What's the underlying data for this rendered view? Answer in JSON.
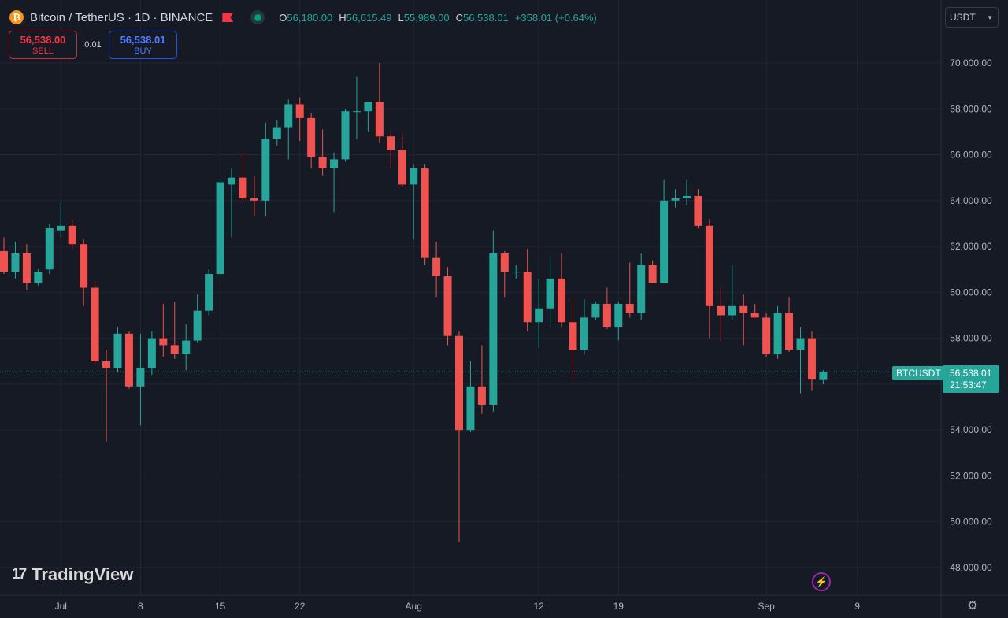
{
  "header": {
    "coin_glyph": "₿",
    "symbol_title": "Bitcoin / TetherUS · 1D · BINANCE",
    "ohlc": {
      "o_label": "O",
      "o_value": "56,180.00",
      "h_label": "H",
      "h_value": "56,615.49",
      "l_label": "L",
      "l_value": "55,989.00",
      "c_label": "C",
      "c_value": "56,538.01",
      "change": "+358.01 (+0.64%)"
    }
  },
  "trade": {
    "sell_price": "56,538.00",
    "sell_label": "SELL",
    "spread": "0.01",
    "buy_price": "56,538.01",
    "buy_label": "BUY"
  },
  "currency_select": {
    "value": "USDT"
  },
  "branding": {
    "logo_mark": "17",
    "logo_text": "TradingView"
  },
  "price_tag": {
    "symbol": "BTCUSDT",
    "price": "56,538.01",
    "countdown": "21:53:47"
  },
  "colors": {
    "up": "#26a69a",
    "down": "#ef5350",
    "background": "#161a25",
    "grid": "#232632",
    "axis_text": "#b2b5be"
  },
  "icons": {
    "bolt": "lightning-icon",
    "gear": "settings-gear-icon",
    "chevron": "chevron-down-icon",
    "flag": "flag-icon"
  },
  "chart_data": {
    "type": "candlestick",
    "x_labels": [
      {
        "label": "Jul",
        "date": "2024-07-01"
      },
      {
        "label": "8",
        "date": "2024-07-08"
      },
      {
        "label": "15",
        "date": "2024-07-15"
      },
      {
        "label": "22",
        "date": "2024-07-22"
      },
      {
        "label": "Aug",
        "date": "2024-08-01"
      },
      {
        "label": "12",
        "date": "2024-08-12"
      },
      {
        "label": "19",
        "date": "2024-08-19"
      },
      {
        "label": "Sep",
        "date": "2024-09-01"
      },
      {
        "label": "9",
        "date": "2024-09-09"
      }
    ],
    "y_ticks": [
      "48,000.00",
      "50,000.00",
      "52,000.00",
      "54,000.00",
      "56,000.00",
      "58,000.00",
      "60,000.00",
      "62,000.00",
      "64,000.00",
      "66,000.00",
      "68,000.00",
      "70,000.00"
    ],
    "ylim": [
      47000,
      71500
    ],
    "xlim": [
      "2024-06-26",
      "2024-09-14"
    ],
    "last_price": 56538.01,
    "candles": [
      {
        "date": "2024-06-26",
        "o": 61800,
        "h": 62400,
        "l": 60800,
        "c": 60900
      },
      {
        "date": "2024-06-27",
        "o": 60900,
        "h": 62200,
        "l": 60600,
        "c": 61700
      },
      {
        "date": "2024-06-28",
        "o": 61700,
        "h": 62100,
        "l": 60100,
        "c": 60400
      },
      {
        "date": "2024-06-29",
        "o": 60400,
        "h": 61000,
        "l": 60300,
        "c": 60900
      },
      {
        "date": "2024-06-30",
        "o": 61000,
        "h": 63000,
        "l": 60800,
        "c": 62800
      },
      {
        "date": "2024-07-01",
        "o": 62700,
        "h": 63900,
        "l": 62400,
        "c": 62900
      },
      {
        "date": "2024-07-02",
        "o": 62900,
        "h": 63200,
        "l": 61900,
        "c": 62100
      },
      {
        "date": "2024-07-03",
        "o": 62100,
        "h": 62300,
        "l": 59400,
        "c": 60200
      },
      {
        "date": "2024-07-04",
        "o": 60200,
        "h": 60500,
        "l": 56800,
        "c": 57000
      },
      {
        "date": "2024-07-05",
        "o": 57000,
        "h": 57500,
        "l": 53500,
        "c": 56700
      },
      {
        "date": "2024-07-06",
        "o": 56700,
        "h": 58500,
        "l": 56500,
        "c": 58200
      },
      {
        "date": "2024-07-07",
        "o": 58200,
        "h": 58300,
        "l": 55800,
        "c": 55900
      },
      {
        "date": "2024-07-08",
        "o": 55900,
        "h": 58200,
        "l": 54200,
        "c": 56700
      },
      {
        "date": "2024-07-09",
        "o": 56700,
        "h": 58300,
        "l": 56400,
        "c": 58000
      },
      {
        "date": "2024-07-10",
        "o": 58000,
        "h": 59500,
        "l": 57200,
        "c": 57700
      },
      {
        "date": "2024-07-11",
        "o": 57700,
        "h": 59600,
        "l": 57100,
        "c": 57300
      },
      {
        "date": "2024-07-12",
        "o": 57300,
        "h": 58600,
        "l": 56600,
        "c": 57900
      },
      {
        "date": "2024-07-13",
        "o": 57900,
        "h": 59900,
        "l": 57800,
        "c": 59200
      },
      {
        "date": "2024-07-14",
        "o": 59200,
        "h": 61000,
        "l": 59000,
        "c": 60800
      },
      {
        "date": "2024-07-15",
        "o": 60800,
        "h": 64900,
        "l": 60600,
        "c": 64800
      },
      {
        "date": "2024-07-16",
        "o": 64700,
        "h": 65400,
        "l": 62400,
        "c": 65000
      },
      {
        "date": "2024-07-17",
        "o": 65000,
        "h": 66100,
        "l": 63900,
        "c": 64100
      },
      {
        "date": "2024-07-18",
        "o": 64100,
        "h": 65100,
        "l": 63300,
        "c": 64000
      },
      {
        "date": "2024-07-19",
        "o": 64000,
        "h": 67400,
        "l": 63300,
        "c": 66700
      },
      {
        "date": "2024-07-20",
        "o": 66700,
        "h": 67500,
        "l": 66400,
        "c": 67200
      },
      {
        "date": "2024-07-21",
        "o": 67200,
        "h": 68400,
        "l": 65800,
        "c": 68200
      },
      {
        "date": "2024-07-22",
        "o": 68200,
        "h": 68500,
        "l": 66600,
        "c": 67600
      },
      {
        "date": "2024-07-23",
        "o": 67600,
        "h": 67800,
        "l": 65400,
        "c": 65900
      },
      {
        "date": "2024-07-24",
        "o": 65900,
        "h": 67100,
        "l": 65100,
        "c": 65400
      },
      {
        "date": "2024-07-25",
        "o": 65400,
        "h": 66100,
        "l": 63500,
        "c": 65800
      },
      {
        "date": "2024-07-26",
        "o": 65800,
        "h": 68000,
        "l": 65700,
        "c": 67900
      },
      {
        "date": "2024-07-27",
        "o": 67900,
        "h": 69400,
        "l": 66700,
        "c": 67900
      },
      {
        "date": "2024-07-28",
        "o": 67900,
        "h": 68300,
        "l": 67000,
        "c": 68300
      },
      {
        "date": "2024-07-29",
        "o": 68300,
        "h": 70000,
        "l": 66500,
        "c": 66800
      },
      {
        "date": "2024-07-30",
        "o": 66800,
        "h": 67000,
        "l": 65400,
        "c": 66200
      },
      {
        "date": "2024-07-31",
        "o": 66200,
        "h": 66900,
        "l": 64600,
        "c": 64700
      },
      {
        "date": "2024-08-01",
        "o": 64700,
        "h": 65600,
        "l": 62300,
        "c": 65400
      },
      {
        "date": "2024-08-02",
        "o": 65400,
        "h": 65600,
        "l": 61200,
        "c": 61500
      },
      {
        "date": "2024-08-03",
        "o": 61500,
        "h": 62200,
        "l": 59800,
        "c": 60700
      },
      {
        "date": "2024-08-04",
        "o": 60700,
        "h": 61100,
        "l": 57700,
        "c": 58100
      },
      {
        "date": "2024-08-05",
        "o": 58100,
        "h": 58300,
        "l": 49100,
        "c": 54000
      },
      {
        "date": "2024-08-06",
        "o": 54000,
        "h": 57000,
        "l": 53900,
        "c": 55900
      },
      {
        "date": "2024-08-07",
        "o": 55900,
        "h": 57700,
        "l": 54700,
        "c": 55100
      },
      {
        "date": "2024-08-08",
        "o": 55100,
        "h": 62700,
        "l": 54800,
        "c": 61700
      },
      {
        "date": "2024-08-09",
        "o": 61700,
        "h": 61800,
        "l": 59800,
        "c": 60900
      },
      {
        "date": "2024-08-10",
        "o": 60900,
        "h": 61200,
        "l": 60600,
        "c": 60900
      },
      {
        "date": "2024-08-11",
        "o": 60900,
        "h": 61900,
        "l": 58300,
        "c": 58700
      },
      {
        "date": "2024-08-12",
        "o": 58700,
        "h": 60600,
        "l": 57600,
        "c": 59300
      },
      {
        "date": "2024-08-13",
        "o": 59300,
        "h": 61500,
        "l": 58500,
        "c": 60600
      },
      {
        "date": "2024-08-14",
        "o": 60600,
        "h": 61700,
        "l": 58500,
        "c": 58700
      },
      {
        "date": "2024-08-15",
        "o": 58700,
        "h": 59800,
        "l": 56200,
        "c": 57500
      },
      {
        "date": "2024-08-16",
        "o": 57500,
        "h": 59700,
        "l": 57300,
        "c": 58900
      },
      {
        "date": "2024-08-17",
        "o": 58900,
        "h": 59600,
        "l": 58800,
        "c": 59500
      },
      {
        "date": "2024-08-18",
        "o": 59500,
        "h": 60200,
        "l": 58400,
        "c": 58500
      },
      {
        "date": "2024-08-19",
        "o": 58500,
        "h": 59600,
        "l": 57900,
        "c": 59500
      },
      {
        "date": "2024-08-20",
        "o": 59500,
        "h": 61300,
        "l": 58900,
        "c": 59100
      },
      {
        "date": "2024-08-21",
        "o": 59100,
        "h": 61700,
        "l": 58800,
        "c": 61200
      },
      {
        "date": "2024-08-22",
        "o": 61200,
        "h": 61400,
        "l": 60400,
        "c": 60400
      },
      {
        "date": "2024-08-23",
        "o": 60400,
        "h": 64900,
        "l": 60400,
        "c": 64000
      },
      {
        "date": "2024-08-24",
        "o": 64000,
        "h": 64500,
        "l": 63700,
        "c": 64100
      },
      {
        "date": "2024-08-25",
        "o": 64100,
        "h": 64900,
        "l": 63800,
        "c": 64200
      },
      {
        "date": "2024-08-26",
        "o": 64200,
        "h": 64500,
        "l": 62800,
        "c": 62900
      },
      {
        "date": "2024-08-27",
        "o": 62900,
        "h": 63200,
        "l": 58000,
        "c": 59400
      },
      {
        "date": "2024-08-28",
        "o": 59400,
        "h": 60200,
        "l": 57900,
        "c": 59000
      },
      {
        "date": "2024-08-29",
        "o": 59000,
        "h": 61200,
        "l": 58800,
        "c": 59400
      },
      {
        "date": "2024-08-30",
        "o": 59400,
        "h": 59900,
        "l": 57700,
        "c": 59100
      },
      {
        "date": "2024-08-31",
        "o": 59100,
        "h": 59500,
        "l": 58900,
        "c": 58900
      },
      {
        "date": "2024-09-01",
        "o": 58900,
        "h": 59100,
        "l": 57200,
        "c": 57300
      },
      {
        "date": "2024-09-02",
        "o": 57300,
        "h": 59400,
        "l": 57100,
        "c": 59100
      },
      {
        "date": "2024-09-03",
        "o": 59100,
        "h": 59800,
        "l": 57400,
        "c": 57500
      },
      {
        "date": "2024-09-04",
        "o": 57500,
        "h": 58500,
        "l": 55600,
        "c": 58000
      },
      {
        "date": "2024-09-05",
        "o": 58000,
        "h": 58300,
        "l": 55700,
        "c": 56200
      },
      {
        "date": "2024-09-06",
        "o": 56180,
        "h": 56615.49,
        "l": 55989,
        "c": 56538.01
      }
    ]
  }
}
